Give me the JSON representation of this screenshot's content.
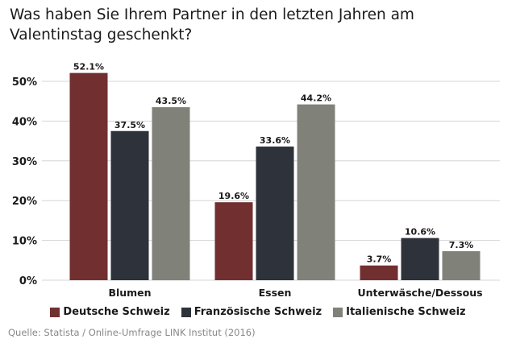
{
  "chart_data": {
    "type": "bar",
    "title": "Was haben Sie Ihrem Partner in den letzten Jahren am Valentinstag geschenkt?",
    "categories": [
      "Blumen",
      "Essen",
      "Unterwäsche/Dessous"
    ],
    "series": [
      {
        "name": "Deutsche Schweiz",
        "color": "#722f30",
        "values": [
          52.1,
          19.6,
          3.7
        ]
      },
      {
        "name": "Französische Schweiz",
        "color": "#2e323a",
        "values": [
          37.5,
          33.6,
          10.6
        ]
      },
      {
        "name": "Italienische Schweiz",
        "color": "#80827a",
        "values": [
          43.5,
          44.2,
          7.3
        ]
      }
    ],
    "ylim": [
      0,
      50
    ],
    "yticks": [
      "0%",
      "10%",
      "20%",
      "30%",
      "40%",
      "50%"
    ],
    "grid": true,
    "legend": "bottom-center",
    "source": "Quelle: Statista / Online-Umfrage LINK Institut (2016)"
  }
}
